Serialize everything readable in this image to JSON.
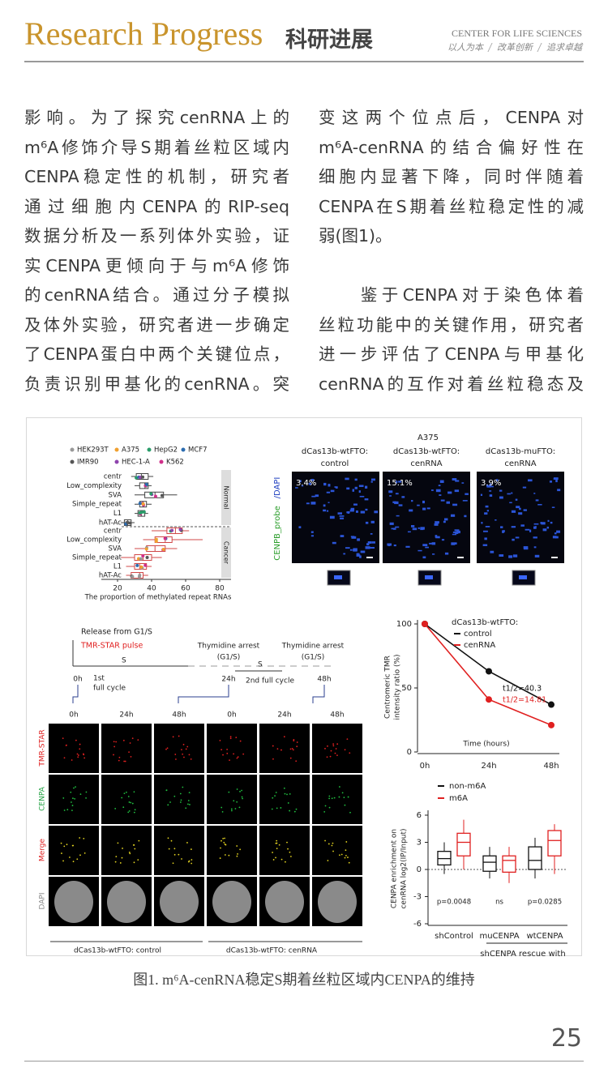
{
  "header": {
    "title": "Research Progress",
    "title_cn": "科研进展",
    "org": "CENTER FOR LIFE SCIENCES",
    "motto": [
      "以人为本",
      "改革创新",
      "追求卓越"
    ]
  },
  "body": {
    "paragraphs": [
      [
        "影响。为了探究cenRNA上的",
        "m⁶A修饰介导S期着丝粒区域内",
        "CENPA稳定性的机制，研究者",
        "通过细胞内CENPA的RIP-seq",
        "数据分析及一系列体外实验，证",
        "实CENPA更倾向于与m⁶A修饰",
        "的cenRNA结合。通过分子模拟",
        "及体外实验，研究者进一步确定",
        "了CENPA蛋白中两个关键位点，",
        "负责识别甲基化的cenRNA。突",
        "变这两个位点后，CENPA对",
        "m⁶A-cenRNA的结合偏好性在",
        "细胞内显著下降，同时伴随着",
        "CENPA在S期着丝粒稳定性的减",
        "弱(图1)。"
      ],
      [
        "　　鉴于CENPA对于染色体着",
        "丝粒功能中的关键作用，研究者",
        "进一步评估了CENPA与甲基化",
        "cenRNA的互作对着丝粒稳态及"
      ]
    ]
  },
  "figure": {
    "panel_a": {
      "legend": [
        "HEK293T",
        "A375",
        "HepG2",
        "MCF7",
        "IMR90",
        "HEC-1-A",
        "K562"
      ],
      "rows": [
        "centr",
        "Low_complexity",
        "SVA",
        "Simple_repeat",
        "L1",
        "hAT-Ac"
      ],
      "groups": [
        "Normal",
        "Cancer"
      ],
      "boxes": [
        [
          [
            28,
            31,
            34,
            38,
            41
          ],
          [
            30,
            33,
            36,
            38,
            40
          ],
          [
            30,
            36,
            42,
            47,
            55
          ],
          [
            30,
            33,
            35,
            37,
            40
          ],
          [
            30,
            32,
            34,
            36,
            38
          ],
          [
            22,
            24,
            26,
            28,
            30
          ]
        ],
        [
          [
            40,
            49,
            54,
            58,
            62
          ],
          [
            35,
            42,
            48,
            52,
            70
          ],
          [
            30,
            37,
            42,
            48,
            55
          ],
          [
            22,
            30,
            35,
            40,
            46
          ],
          [
            25,
            30,
            33,
            37,
            40
          ],
          [
            25,
            28,
            33,
            35,
            38
          ]
        ]
      ],
      "xticks": [
        20,
        40,
        60,
        80
      ],
      "xlabel": "The proportion of methylated repeat RNAs"
    },
    "panel_b": {
      "title": "A375",
      "columns": [
        [
          "dCas13b-wtFTO:",
          "control",
          "3.4%"
        ],
        [
          "dCas13b-wtFTO:",
          "cenRNA",
          "15.1%"
        ],
        [
          "dCas13b-muFTO:",
          "cenRNA",
          "3.9%"
        ]
      ],
      "ylabel": [
        "CENPB_probe",
        "/DAPI"
      ]
    },
    "panel_c": {
      "release": "Release from G1/S",
      "pulse": "TMR-STAR pulse",
      "arrests": [
        [
          "Thymidine arrest",
          "(G1/S)"
        ],
        [
          "Thymidine arrest",
          "(G1/S)"
        ]
      ],
      "s_labels": [
        "S",
        "S"
      ],
      "times": [
        "0h",
        "24h",
        "48h"
      ],
      "cycles": [
        [
          "1st",
          "full cycle"
        ],
        [
          "2nd  full cycle"
        ]
      ],
      "columns": [
        "0h",
        "24h",
        "48h",
        "0h",
        "24h",
        "48h"
      ],
      "rows": [
        "TMR-STAR",
        "CENPA",
        "Merge",
        "DAPI"
      ],
      "groups": [
        "dCas13b-wtFTO:  control",
        "dCas13b-wtFTO:  cenRNA"
      ]
    },
    "panel_d": {
      "legend_title": "dCas13b-wtFTO:",
      "series": [
        {
          "name": "control",
          "color": "#111111",
          "values": [
            100,
            63,
            37
          ],
          "half_life": "t1/2=40.3"
        },
        {
          "name": "cenRNA",
          "color": "#e02020",
          "values": [
            100,
            41,
            21
          ],
          "half_life": "t1/2=14.81"
        }
      ],
      "x": [
        "0h",
        "24h",
        "48h"
      ],
      "ylim": [
        0,
        100
      ],
      "yticks": [
        0,
        50,
        100
      ],
      "xlabel": "Time (hours)",
      "ylabel": [
        "Centromeric TMR",
        "intensity ratio (%)"
      ]
    },
    "panel_e": {
      "series": [
        {
          "name": "non-m6A",
          "color": "#111111",
          "boxes": [
            [
              -0.5,
              0.5,
              1.2,
              2,
              3
            ],
            [
              -1,
              -0.2,
              0.8,
              1.5,
              2.5
            ],
            [
              -1,
              0,
              1,
              2.5,
              3.5
            ]
          ]
        },
        {
          "name": "m6A",
          "color": "#e02020",
          "boxes": [
            [
              0,
              1.5,
              3,
              4,
              5.5
            ],
            [
              -1.5,
              -0.3,
              1,
              1.5,
              2.5
            ],
            [
              -0.5,
              1.5,
              3.2,
              4.3,
              5
            ]
          ]
        }
      ],
      "categories": [
        "shControl",
        "muCENPA",
        "wtCENPA"
      ],
      "group_label": "shCENPA rescue with",
      "p_values": [
        "p=0.0048",
        "ns",
        "p=0.0285"
      ],
      "ylim": [
        -6,
        6
      ],
      "yticks": [
        -6,
        -3,
        0,
        3,
        6
      ],
      "ylabel": [
        "CENPA enrichment on",
        "cenRNA  log2(IP/Input)"
      ]
    }
  },
  "caption": "图1. m⁶A-cenRNA稳定S期着丝粒区域内CENPA的维持",
  "page_number": 25
}
